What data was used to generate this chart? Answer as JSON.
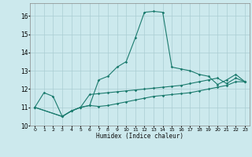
{
  "xlabel": "Humidex (Indice chaleur)",
  "xlim": [
    -0.5,
    23.5
  ],
  "ylim": [
    10,
    16.7
  ],
  "yticks": [
    10,
    11,
    12,
    13,
    14,
    15,
    16
  ],
  "xticks": [
    0,
    1,
    2,
    3,
    4,
    5,
    6,
    7,
    8,
    9,
    10,
    11,
    12,
    13,
    14,
    15,
    16,
    17,
    18,
    19,
    20,
    21,
    22,
    23
  ],
  "bg_color": "#cce9ed",
  "grid_color": "#aacdd2",
  "line_color": "#1b7b6e",
  "line1_x": [
    0,
    1,
    2,
    3,
    4,
    5,
    6,
    7,
    8,
    9,
    10,
    11,
    12,
    13,
    14,
    15,
    16,
    17,
    18,
    19,
    20,
    21,
    22,
    23
  ],
  "line1_y": [
    11.0,
    11.8,
    11.6,
    10.5,
    10.8,
    11.0,
    11.1,
    12.5,
    12.7,
    13.2,
    13.5,
    14.8,
    16.2,
    16.25,
    16.2,
    13.2,
    13.1,
    13.0,
    12.8,
    12.7,
    12.25,
    12.5,
    12.8,
    12.4
  ],
  "line2_x": [
    0,
    3,
    4,
    5,
    6,
    7,
    8,
    9,
    10,
    11,
    12,
    13,
    14,
    15,
    16,
    17,
    18,
    19,
    20,
    21,
    22,
    23
  ],
  "line2_y": [
    11.0,
    10.5,
    10.8,
    11.0,
    11.7,
    11.75,
    11.8,
    11.85,
    11.9,
    11.95,
    12.0,
    12.05,
    12.1,
    12.15,
    12.2,
    12.3,
    12.4,
    12.5,
    12.6,
    12.3,
    12.6,
    12.4
  ],
  "line3_x": [
    0,
    3,
    4,
    5,
    6,
    7,
    8,
    9,
    10,
    11,
    12,
    13,
    14,
    15,
    16,
    17,
    18,
    19,
    20,
    21,
    22,
    23
  ],
  "line3_y": [
    11.0,
    10.5,
    10.8,
    11.0,
    11.1,
    11.05,
    11.1,
    11.2,
    11.3,
    11.4,
    11.5,
    11.6,
    11.65,
    11.7,
    11.75,
    11.8,
    11.9,
    12.0,
    12.1,
    12.2,
    12.4,
    12.4
  ]
}
